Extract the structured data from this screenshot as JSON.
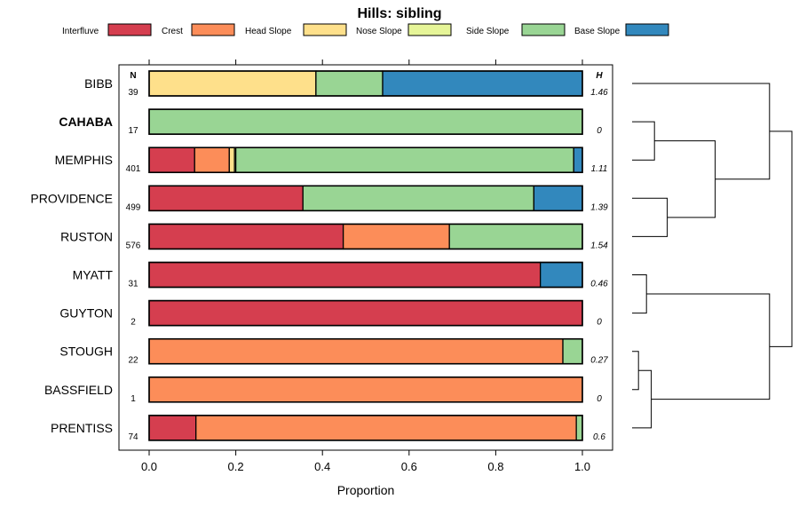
{
  "chart_data": {
    "type": "bar",
    "orientation": "horizontal",
    "stacked": true,
    "title": "Hills: sibling",
    "xlabel": "Proportion",
    "ylabel": "",
    "xlim": [
      -0.07,
      1.07
    ],
    "x_ticks": [
      "0.0",
      "0.2",
      "0.4",
      "0.6",
      "0.8",
      "1.0"
    ],
    "x_tick_values": [
      0,
      0.2,
      0.4,
      0.6,
      0.8,
      1.0
    ],
    "n_header": "N",
    "h_header": "H",
    "legend_position": "top",
    "series": [
      {
        "name": "Interfluve",
        "color": "#d53e4f"
      },
      {
        "name": "Crest",
        "color": "#fc8d59"
      },
      {
        "name": "Head Slope",
        "color": "#fee08b"
      },
      {
        "name": "Nose Slope",
        "color": "#e6f598"
      },
      {
        "name": "Side Slope",
        "color": "#99d594"
      },
      {
        "name": "Base Slope",
        "color": "#3288bd"
      }
    ],
    "rows": [
      {
        "label": "BIBB",
        "bold": false,
        "n": "39",
        "h": "1.46",
        "values": [
          0,
          0,
          0.385,
          0,
          0.154,
          0.461
        ]
      },
      {
        "label": "CAHABA",
        "bold": true,
        "n": "17",
        "h": "0",
        "values": [
          0,
          0,
          0,
          0,
          1.0,
          0
        ]
      },
      {
        "label": "MEMPHIS",
        "bold": false,
        "n": "401",
        "h": "1.11",
        "values": [
          0.105,
          0.08,
          0.012,
          0.003,
          0.78,
          0.02
        ]
      },
      {
        "label": "PROVIDENCE",
        "bold": false,
        "n": "499",
        "h": "1.39",
        "values": [
          0.355,
          0,
          0,
          0,
          0.533,
          0.112
        ]
      },
      {
        "label": "RUSTON",
        "bold": false,
        "n": "576",
        "h": "1.54",
        "values": [
          0.448,
          0.245,
          0,
          0,
          0.307,
          0
        ]
      },
      {
        "label": "MYATT",
        "bold": false,
        "n": "31",
        "h": "0.46",
        "values": [
          0.903,
          0,
          0,
          0,
          0,
          0.097
        ]
      },
      {
        "label": "GUYTON",
        "bold": false,
        "n": "2",
        "h": "0",
        "values": [
          1.0,
          0,
          0,
          0,
          0,
          0
        ]
      },
      {
        "label": "STOUGH",
        "bold": false,
        "n": "22",
        "h": "0.27",
        "values": [
          0,
          0.955,
          0,
          0,
          0.045,
          0
        ]
      },
      {
        "label": "BASSFIELD",
        "bold": false,
        "n": "1",
        "h": "0",
        "values": [
          0,
          1.0,
          0,
          0,
          0,
          0
        ]
      },
      {
        "label": "PRENTISS",
        "bold": false,
        "n": "74",
        "h": "0.6",
        "values": [
          0.108,
          0.878,
          0,
          0,
          0.014,
          0
        ]
      }
    ],
    "dendrogram": {
      "leaf_order": [
        "BIBB",
        "CAHABA",
        "MEMPHIS",
        "PROVIDENCE",
        "RUSTON",
        "MYATT",
        "GUYTON",
        "STOUGH",
        "BASSFIELD",
        "PRENTISS"
      ],
      "merges": [
        {
          "a": "CAHABA",
          "b": "MEMPHIS",
          "height": 0.14,
          "id": "m1"
        },
        {
          "a": "PROVIDENCE",
          "b": "RUSTON",
          "height": 0.22,
          "id": "m2"
        },
        {
          "a": "m1",
          "b": "m2",
          "height": 0.52,
          "id": "m3"
        },
        {
          "a": "MYATT",
          "b": "GUYTON",
          "height": 0.09,
          "id": "m4"
        },
        {
          "a": "STOUGH",
          "b": "BASSFIELD",
          "height": 0.04,
          "id": "m5"
        },
        {
          "a": "m5",
          "b": "PRENTISS",
          "height": 0.12,
          "id": "m6"
        },
        {
          "a": "BIBB",
          "b": "m3",
          "height": 0.86,
          "id": "m7"
        },
        {
          "a": "m4",
          "b": "m6",
          "height": 0.86,
          "id": "m8"
        },
        {
          "a": "m7",
          "b": "m8",
          "height": 1.0,
          "id": "m9"
        }
      ]
    }
  }
}
